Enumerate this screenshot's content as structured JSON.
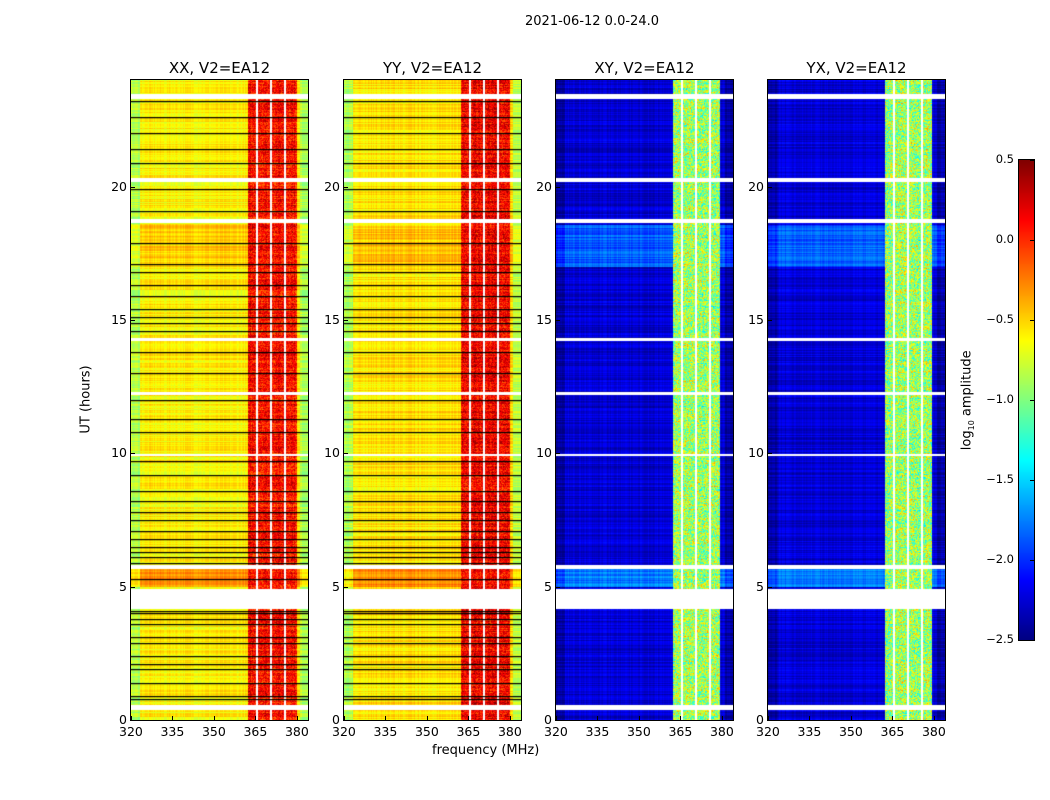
{
  "chart_data": {
    "type": "heatmap",
    "title": "2021-06-12 0.0-24.0",
    "xlabel": "frequency (MHz)",
    "ylabel": "UT (hours)",
    "xlim": [
      320,
      384
    ],
    "ylim": [
      0,
      24
    ],
    "xticks": [
      "320",
      "335",
      "350",
      "365",
      "380"
    ],
    "xtick_values": [
      320,
      335,
      350,
      365,
      380
    ],
    "yticks": [
      "0",
      "5",
      "10",
      "15",
      "20"
    ],
    "ytick_values": [
      0,
      5,
      10,
      15,
      20
    ],
    "colorbar": {
      "label": "log10 amplitude",
      "label_main": "log",
      "label_sub": "10",
      "label_rest": " amplitude",
      "range": [
        -2.5,
        0.5
      ],
      "ticks": [
        "0.5",
        "0.0",
        "−0.5",
        "−1.0",
        "−1.5",
        "−2.0",
        "−2.5"
      ],
      "tick_values": [
        0.5,
        0.0,
        -0.5,
        -1.0,
        -1.5,
        -2.0,
        -2.5
      ],
      "colormap": "jet"
    },
    "flagged_time_ranges_hours": [
      [
        0.4,
        0.6
      ],
      [
        4.2,
        4.95
      ],
      [
        5.7,
        5.85
      ],
      [
        9.9,
        10.0
      ],
      [
        12.2,
        12.3
      ],
      [
        14.25,
        14.35
      ],
      [
        18.65,
        18.8
      ],
      [
        20.2,
        20.35
      ],
      [
        23.3,
        23.5
      ]
    ],
    "flagged_freq_gaps_MHz": [
      365.5,
      370.5,
      375.5
    ],
    "black_rows_hours": [
      0.8,
      0.9,
      1.4,
      1.9,
      2.1,
      2.4,
      2.9,
      3.1,
      3.6,
      3.8,
      4.0,
      4.1,
      5.3,
      5.9,
      6.1,
      6.3,
      6.5,
      6.8,
      7.1,
      7.5,
      7.8,
      8.2,
      8.6,
      9.2,
      9.7,
      10.8,
      11.3,
      12.0,
      13.0,
      13.8,
      14.6,
      14.9,
      15.1,
      15.4,
      15.9,
      16.3,
      16.8,
      17.1,
      17.9,
      19.1,
      19.9,
      20.9,
      21.4,
      22.0,
      22.6,
      23.2
    ],
    "panels": [
      {
        "title": "XX, V2=EA12",
        "background_level": -0.6,
        "band_MHz": [
          362,
          380
        ],
        "band_level": 0.1,
        "edge_level": -0.85
      },
      {
        "title": "YY, V2=EA12",
        "background_level": -0.55,
        "band_MHz": [
          362,
          380
        ],
        "band_level": 0.15,
        "edge_level": -0.85
      },
      {
        "title": "XY, V2=EA12",
        "background_level": -2.25,
        "band_MHz": [
          362,
          379
        ],
        "band_level": -0.9,
        "edge_level": -2.4
      },
      {
        "title": "YX, V2=EA12",
        "background_level": -2.25,
        "band_MHz": [
          362,
          379
        ],
        "band_level": -0.9,
        "edge_level": -2.4
      }
    ]
  }
}
